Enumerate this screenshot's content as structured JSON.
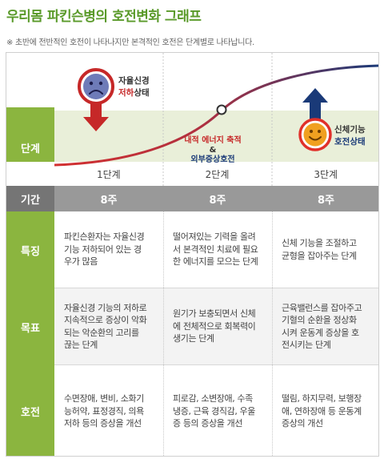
{
  "title": "우리몸 파킨슨병의 호전변화 그래프",
  "note": "※ 초반에 전반적인 호전이 나타나지만 본격적인 호전은 단계별로 나타납니다.",
  "labels": {
    "stage": "단계",
    "period": "기간",
    "feature": "특징",
    "goal": "목표",
    "care": "호전"
  },
  "chart_data": {
    "type": "line",
    "categories": [
      "1단계",
      "2단계",
      "3단계"
    ],
    "annotations": {
      "stage1_top": "자율신경",
      "stage1_red": "저하",
      "stage1_rest": "상태",
      "stage2_line1": "내적 에너지 축적",
      "stage2_amp": "&",
      "stage2_line2": "외부증상호전",
      "stage3_line1": "신체기능",
      "stage3_line2": "호전상태"
    },
    "colors": {
      "curve_start": "#d32f2f",
      "curve_end": "#1a3a78",
      "band": "#e9efd9",
      "down_arrow": "#c62828",
      "up_arrow": "#1a3a78",
      "sad_face": "#c62828",
      "happy_face": "#f0a020"
    },
    "icons": {
      "stage1": "sad-face-icon",
      "stage1_arrow": "down-arrow-icon",
      "stage3": "happy-face-icon",
      "stage3_arrow": "up-arrow-icon"
    }
  },
  "periods": [
    "8주",
    "8주",
    "8주"
  ],
  "features": [
    "파킨슨환자는 자율신경\n기능 저하되어 있는 경\n우가 많음",
    "떨어져있는 기력을 올려\n서 본격적인 치료에 필요\n한 에너지를 모으는 단계",
    "신체 기능을 조절하고\n균형을 잡아주는 단계"
  ],
  "goals": [
    "자율신경 기능의 저하로\n지속적으로 증상이 악화\n되는 악순환의 고리를\n끊는 단계",
    "원기가 보충되면서 신체\n에 전체적으로 회복력이\n생기는 단계",
    "근육밸런스를 잡아주고\n기혈의 순환을 정상화\n시켜 운동계 증상을 호\n전시키는 단계"
  ],
  "cares": [
    "수면장애, 변비, 소화기\n능허약, 표정경직, 의욕\n저하 등의 증상을 개선",
    "피로감, 소변장애, 수족\n냉증, 근육 경직감, 우울\n증 등의 증상을 개선",
    "떨림, 하지무력, 보행장\n애, 연하장애 등 운동계\n증상의 개선"
  ]
}
